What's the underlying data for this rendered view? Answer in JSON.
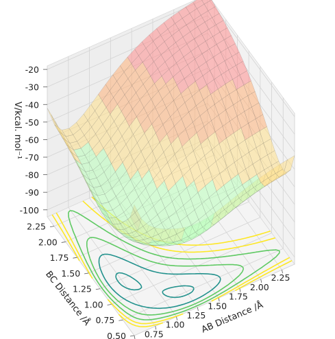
{
  "chart_data": {
    "type": "surface3d",
    "description_hidden": false,
    "xlabel": "AB Distance /Å",
    "ylabel": "BC Distance /Å",
    "zlabel": "V/kcal. mol⁻¹",
    "x_ticks": [
      "0.50",
      "0.75",
      "1.00",
      "1.25",
      "1.50",
      "1.75",
      "2.00",
      "2.25"
    ],
    "y_ticks": [
      "0.50",
      "0.75",
      "1.00",
      "1.25",
      "1.50",
      "1.75",
      "2.00",
      "2.25"
    ],
    "z_ticks": [
      "-100",
      "-90",
      "-80",
      "-70",
      "-60",
      "-50",
      "-40",
      "-30",
      "-20"
    ],
    "x_values": [
      0.5,
      0.75,
      1.0,
      1.25,
      1.5,
      1.75,
      2.0,
      2.25
    ],
    "y_values": [
      0.5,
      0.75,
      1.0,
      1.25,
      1.5,
      1.75,
      2.0,
      2.25
    ],
    "z_values": [
      -100,
      -90,
      -80,
      -70,
      -60,
      -50,
      -40,
      -30,
      -20
    ],
    "xlim": [
      0.5,
      2.4
    ],
    "ylim": [
      0.5,
      2.4
    ],
    "zlim": [
      -104,
      -18
    ],
    "grid": true,
    "colormap_surface": "jet",
    "colormap_contour": "viridis",
    "surface_colors": [
      "#5eb3ff",
      "#8fd6ff",
      "#b9ffb9",
      "#ffe08a",
      "#ffb37a",
      "#ff8f8f"
    ],
    "contour_colors": [
      "#440154",
      "#3b528b",
      "#21918c",
      "#5ec962",
      "#fde725"
    ],
    "surface_model": {
      "well_depth": -101,
      "plateau": -56,
      "peak_near_origin": -20,
      "equilibrium_distance": 0.74
    }
  }
}
